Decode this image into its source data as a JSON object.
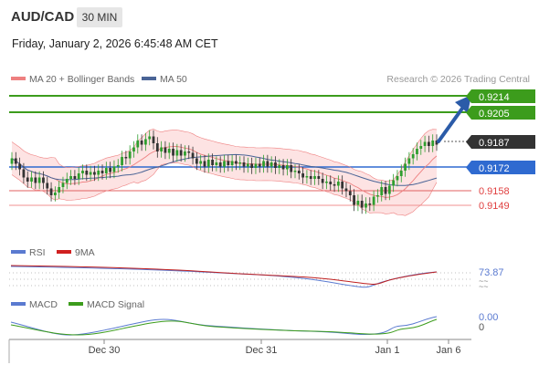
{
  "header": {
    "symbol": "AUD/CAD",
    "timeframe": "30 MIN",
    "datetime": "Friday, January 2, 2026 6:45:48 AM CET"
  },
  "legend": {
    "ma20": "MA 20 + Bollinger Bands",
    "ma50": "MA 50",
    "research": "Research © 2026 Trading Central",
    "rsi": "RSI",
    "rsi_ma": "9MA",
    "macd": "MACD",
    "macd_signal": "MACD Signal"
  },
  "colors": {
    "up": "#2e9e2e",
    "down": "#333333",
    "bollinger_fill": "#fde0e0",
    "ma20": "#ee8080",
    "ma50": "#4a6496",
    "resistance": "#3c9c1c",
    "pivot": "#2f6ad0",
    "support": "#e06060",
    "arrow": "#2b5ba8",
    "last_price_tag": "#333333"
  },
  "levels": {
    "r2": "0.9214",
    "r1": "0.9205",
    "last": "0.9187",
    "pivot": "0.9172",
    "s1": "0.9158",
    "s2": "0.9149"
  },
  "rsi_value": "73.87",
  "macd_values": [
    "0.00",
    "0"
  ],
  "x_axis": [
    "Dec 30",
    "Dec 31",
    "Jan 1",
    "Jan 6"
  ],
  "chart_data": {
    "type": "candlestick",
    "price_axis": {
      "min": 0.9118,
      "max": 0.9226
    },
    "closes": [
      0.9177,
      0.9173,
      0.9169,
      0.9163,
      0.916,
      0.9163,
      0.9159,
      0.9163,
      0.9159,
      0.9155,
      0.915,
      0.9152,
      0.9156,
      0.9159,
      0.9162,
      0.9164,
      0.9162,
      0.9166,
      0.9168,
      0.9165,
      0.9167,
      0.9165,
      0.9168,
      0.9166,
      0.917,
      0.9167,
      0.9171,
      0.9172,
      0.9178,
      0.9177,
      0.9182,
      0.9185,
      0.919,
      0.9187,
      0.9191,
      0.9193,
      0.9188,
      0.9182,
      0.9185,
      0.9181,
      0.9184,
      0.9179,
      0.9183,
      0.9179,
      0.9182,
      0.9181,
      0.9177,
      0.9173,
      0.9175,
      0.9171,
      0.9176,
      0.9172,
      0.9174,
      0.9171,
      0.9175,
      0.9172,
      0.9175,
      0.9173,
      0.9174,
      0.9171,
      0.9173,
      0.917,
      0.9173,
      0.9171,
      0.9175,
      0.9171,
      0.9174,
      0.917,
      0.9172,
      0.9169,
      0.9172,
      0.9167,
      0.9168,
      0.9166,
      0.9163,
      0.9164,
      0.9162,
      0.9164,
      0.9162,
      0.9159,
      0.916,
      0.9158,
      0.9157,
      0.916,
      0.9155,
      0.9153,
      0.915,
      0.9143,
      0.9146,
      0.9141,
      0.9144,
      0.9143,
      0.9149,
      0.915,
      0.9156,
      0.9151,
      0.9157,
      0.9161,
      0.9164,
      0.9168,
      0.9173,
      0.9177,
      0.918,
      0.9184,
      0.9186,
      0.9189,
      0.9186,
      0.919,
      0.9187
    ]
  }
}
